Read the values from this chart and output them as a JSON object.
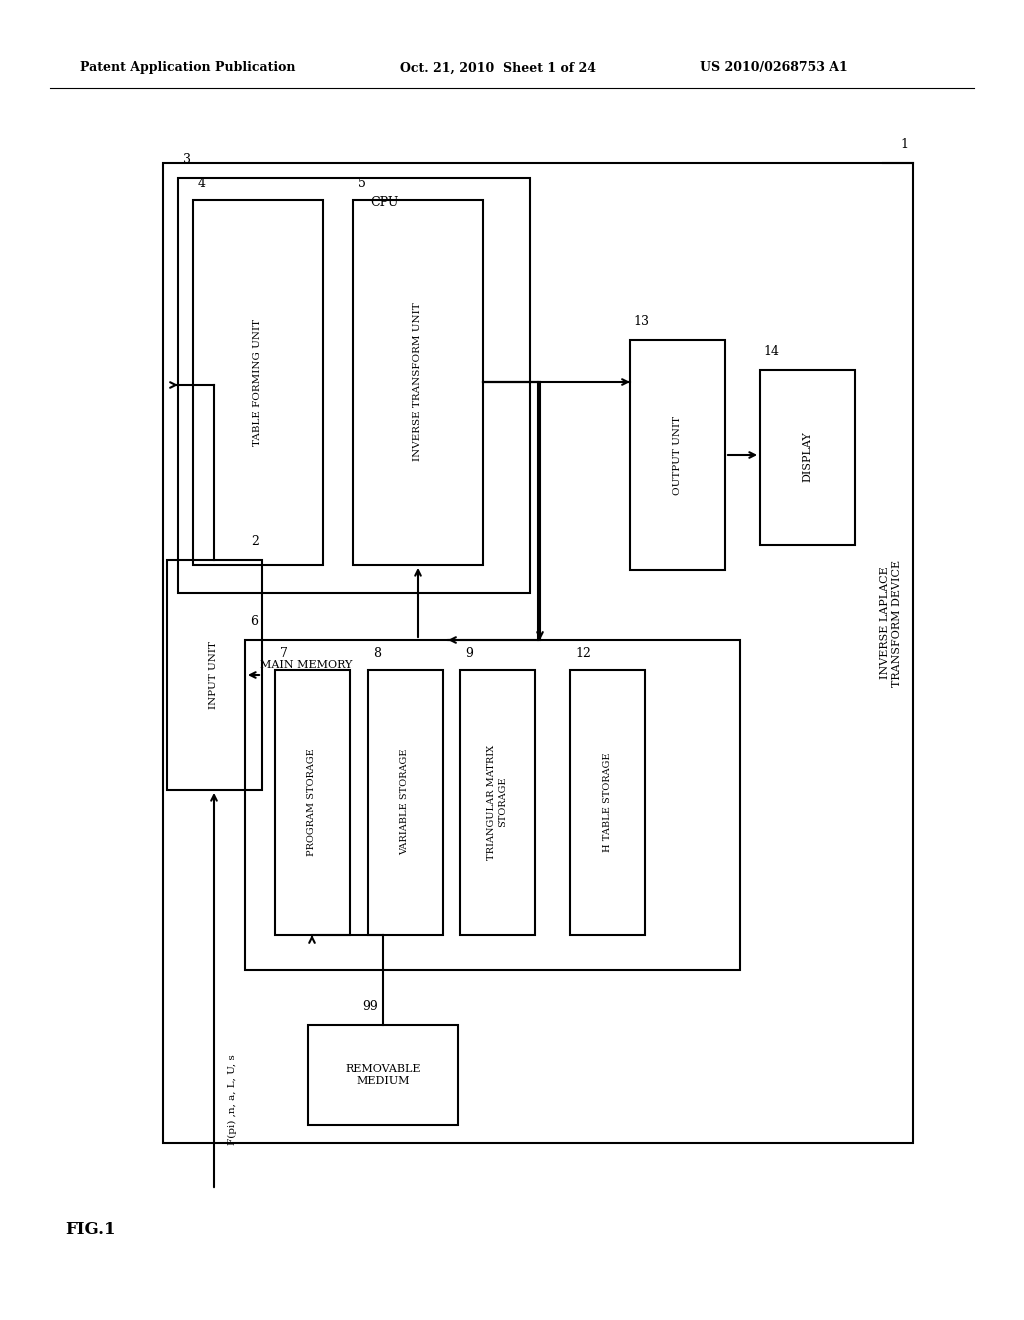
{
  "bg_color": "#ffffff",
  "header_left": "Patent Application Publication",
  "header_mid": "Oct. 21, 2010  Sheet 1 of 24",
  "header_right": "US 2010/0268753 A1",
  "fig_label": "FIG.1",
  "input_signal_label": "F(pi) ,n, a, L, U, s"
}
